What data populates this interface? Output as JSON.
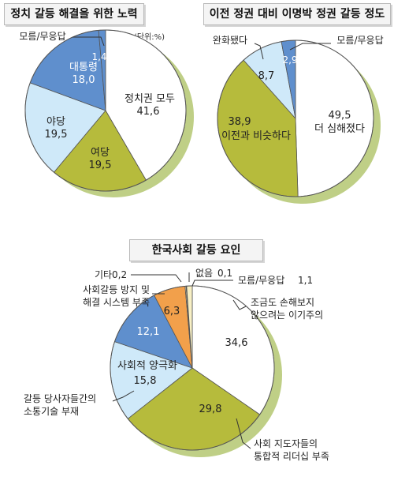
{
  "colors": {
    "white": "#ffffff",
    "light_blue": "#cfe9f9",
    "blue": "#5f8fcd",
    "olive": "#b6bb3c",
    "orange": "#f2a04b",
    "cream": "#f7efc4",
    "shadow": "#bfcf86",
    "text_dark": "#222222",
    "text_light": "#ffffff"
  },
  "chart_data": [
    {
      "type": "pie",
      "title": "정치 갈등 해결을 위한 노력",
      "unit_note": "(단위:%)",
      "slices": [
        {
          "label": "정치권 모두",
          "value": 41.6,
          "value_label": "41,6",
          "color": "white"
        },
        {
          "label": "여당",
          "value": 19.5,
          "value_label": "19,5",
          "color": "olive"
        },
        {
          "label": "야당",
          "value": 19.5,
          "value_label": "19,5",
          "color": "light_blue"
        },
        {
          "label": "대통령",
          "value": 18.0,
          "value_label": "18,0",
          "color": "blue"
        },
        {
          "label": "모름/무응답",
          "value": 1.4,
          "value_label": "1,4",
          "color": "blue"
        }
      ]
    },
    {
      "type": "pie",
      "title": "이전 정권 대비 이명박 정권 갈등 정도",
      "slices": [
        {
          "label": "더 심해졌다",
          "value": 49.5,
          "value_label": "49,5",
          "color": "white"
        },
        {
          "label": "이전과 비슷하다",
          "value": 38.9,
          "value_label": "38,9",
          "color": "olive"
        },
        {
          "label": "완화됐다",
          "value": 8.7,
          "value_label": "8,7",
          "color": "light_blue"
        },
        {
          "label": "모름/무응답",
          "value": 2.9,
          "value_label": "2,9",
          "color": "blue"
        }
      ]
    },
    {
      "type": "pie",
      "title": "한국사회 갈등 요인",
      "slices": [
        {
          "label": "조금도 손해보지 않으려는 이기주의",
          "value": 34.6,
          "value_label": "34,6",
          "color": "white"
        },
        {
          "label": "사회 지도자들의 통합적 리더십 부족",
          "value": 29.8,
          "value_label": "29,8",
          "color": "olive"
        },
        {
          "label": "갈등 당사자들간의 소통기술 부재",
          "value": 15.8,
          "value_label": "15,8",
          "color": "light_blue"
        },
        {
          "label": "사회적 양극화",
          "value": 12.1,
          "value_label": "12,1",
          "color": "blue"
        },
        {
          "label": "사회갈등 방지 및 해결 시스템 부족",
          "value": 6.3,
          "value_label": "6,3",
          "color": "orange"
        },
        {
          "label": "기타",
          "value": 0.2,
          "value_label": "0,2",
          "color": "cream"
        },
        {
          "label": "없음",
          "value": 0.1,
          "value_label": "0,1",
          "color": "cream"
        },
        {
          "label": "모름/무응답",
          "value": 1.1,
          "value_label": "1,1",
          "color": "cream"
        }
      ]
    }
  ],
  "labels": {
    "c1_jeongchi": "정치권 모두",
    "c1_jeongchi_val": "41,6",
    "c1_yeodang": "여당",
    "c1_yeodang_val": "19,5",
    "c1_yadang": "야당",
    "c1_yadang_val": "19,5",
    "c1_president": "대통령",
    "c1_president_val": "18,0",
    "c1_noresp": "모름/무응답",
    "c1_noresp_val": "1,4",
    "c2_worse": "더 심해졌다",
    "c2_worse_val": "49,5",
    "c2_similar": "이전과 비슷하다",
    "c2_similar_val": "38,9",
    "c2_eased": "완화됐다",
    "c2_eased_val": "8,7",
    "c2_noresp": "모름/무응답",
    "c2_noresp_val": "2,9",
    "c3_selfish_1": "조금도 손해보지",
    "c3_selfish_2": "않으려는 이기주의",
    "c3_selfish_val": "34,6",
    "c3_leader_1": "사회 지도자들의",
    "c3_leader_2": "통합적 리더십 부족",
    "c3_leader_val": "29,8",
    "c3_comm_1": "갈등 당사자들간의",
    "c3_comm_2": "소통기술 부재",
    "c3_comm_val": "15,8",
    "c3_polar": "사회적 양극화",
    "c3_polar_val": "12,1",
    "c3_system_1": "사회갈등 방지 및",
    "c3_system_2": "해결 시스템 부족",
    "c3_system_val": "6,3",
    "c3_etc": "기타",
    "c3_etc_val": "0,2",
    "c3_none": "없음",
    "c3_none_val": "0,1",
    "c3_noresp": "모름/무응답",
    "c3_noresp_val": "1,1"
  }
}
